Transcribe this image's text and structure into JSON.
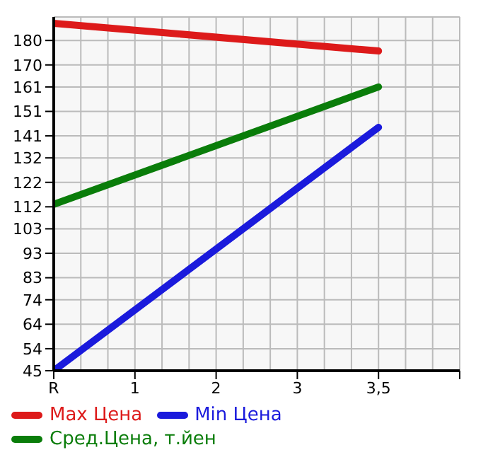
{
  "chart_data": {
    "type": "line",
    "categories": [
      "R",
      "1",
      "2",
      "3",
      "3,5",
      null
    ],
    "series": [
      {
        "name": "Max Цена",
        "color": "#dd1a1a",
        "values": [
          187,
          null,
          null,
          null,
          175.7,
          null
        ]
      },
      {
        "name": "Min Цена",
        "color": "#1a1adc",
        "values": [
          45,
          null,
          null,
          null,
          144.5,
          null
        ]
      },
      {
        "name": "Сред.Цена, т.йен",
        "color": "#0a7d0a",
        "values": [
          113,
          null,
          null,
          null,
          161,
          null
        ]
      }
    ],
    "ylim": [
      45,
      189.6
    ],
    "yticks": [
      45,
      54,
      64,
      74,
      83,
      93,
      103,
      112,
      122,
      132,
      141,
      151,
      161,
      170,
      180
    ],
    "grid": true,
    "legend": "bottom",
    "marker": "none",
    "line_style": "solid"
  }
}
